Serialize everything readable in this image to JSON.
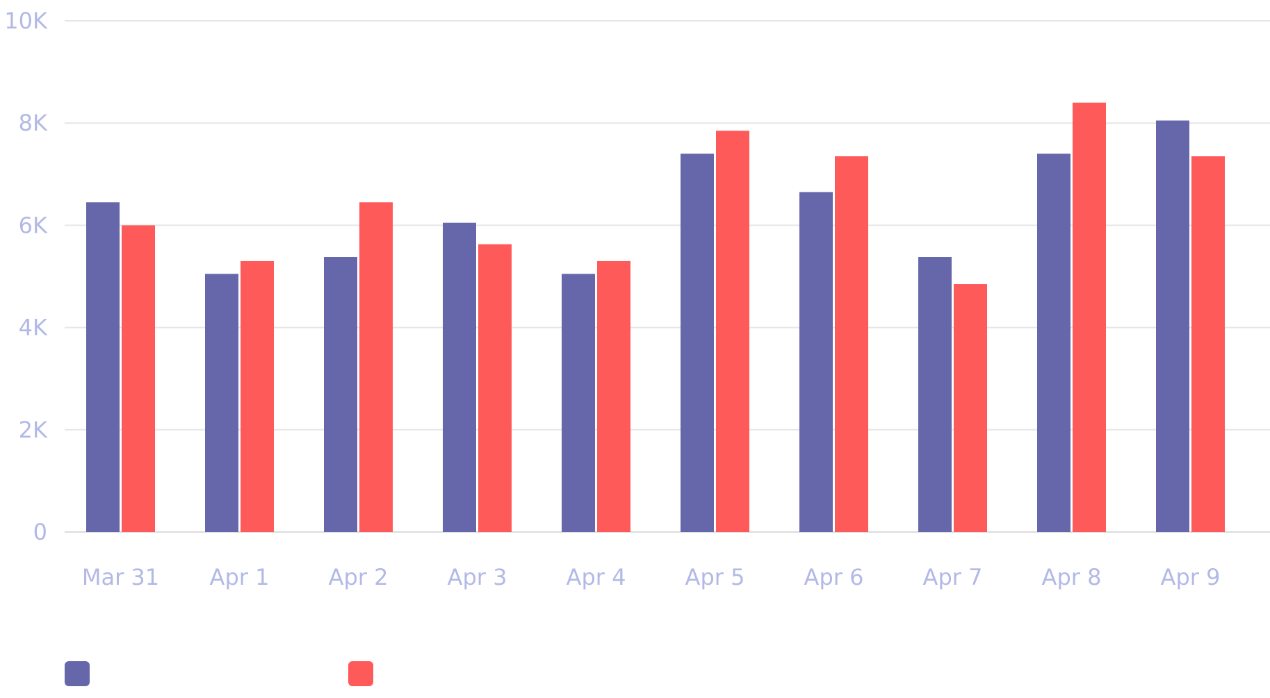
{
  "chart_data": {
    "type": "bar",
    "categories": [
      "Mar 31",
      "Apr 1",
      "Apr 2",
      "Apr 3",
      "Apr 4",
      "Apr 5",
      "Apr 6",
      "Apr 7",
      "Apr 8",
      "Apr 9"
    ],
    "series": [
      {
        "name": "",
        "color": "#6567aa",
        "values": [
          6450,
          5050,
          5380,
          6050,
          5050,
          7400,
          6650,
          5380,
          7400,
          8050
        ]
      },
      {
        "name": "",
        "color": "#ff5a5a",
        "values": [
          6000,
          5300,
          6450,
          5630,
          5300,
          7850,
          7350,
          4850,
          8400,
          7350
        ]
      }
    ],
    "y_ticks": [
      0,
      2000,
      4000,
      6000,
      8000,
      10000
    ],
    "y_tick_labels": [
      "0",
      "2K",
      "4K",
      "6K",
      "8K",
      "10K"
    ],
    "ylim": [
      0,
      10000
    ],
    "grid": true,
    "legend_position": "bottom-left",
    "title": "",
    "xlabel": "",
    "ylabel": ""
  },
  "colors": {
    "tick_text": "#b3b9e6",
    "series_1": "#6567aa",
    "series_2": "#ff5a5a"
  }
}
